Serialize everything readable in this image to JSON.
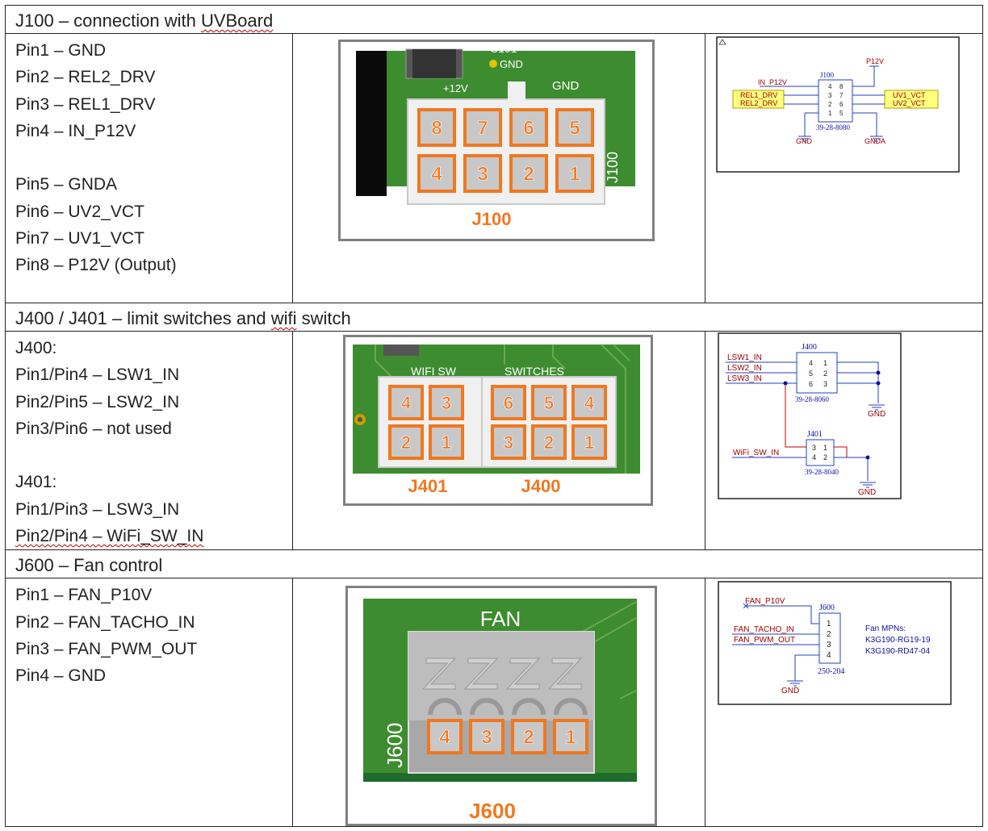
{
  "sections": [
    {
      "title_prefix": "J100 – connection with ",
      "title_term": "UVBoard",
      "pins": [
        "Pin1 – GND",
        "Pin2 – REL2_DRV",
        "Pin3 – REL1_DRV",
        "Pin4 – IN_P12V",
        "",
        "Pin5 – GNDA",
        "Pin6 – UV2_VCT",
        "Pin7 – UV1_VCT",
        "Pin8 – P12V (Output)"
      ],
      "board": {
        "caption": "J100",
        "silk_vertical": "J100",
        "labels": [
          "C101",
          "GND",
          "+12V",
          "GND"
        ],
        "top_row": [
          "8",
          "7",
          "6",
          "5"
        ],
        "bottom_row": [
          "4",
          "3",
          "2",
          "1"
        ]
      },
      "schematic": {
        "ref": "J100",
        "part": "39-28-8080",
        "pins_left": [
          "4",
          "3",
          "2",
          "1"
        ],
        "pins_right": [
          "8",
          "7",
          "6",
          "5"
        ],
        "nets": [
          "IN_P12V",
          "REL1_DRV",
          "REL2_DRV",
          "P12V",
          "UV1_VCT",
          "UV2_VCT",
          "GND",
          "GNDA"
        ]
      }
    },
    {
      "title_prefix": "J400 / J401 – limit switches and ",
      "title_term": "wifi",
      "title_suffix": " switch",
      "pins_a": [
        "J400:",
        "Pin1/Pin4 – LSW1_IN",
        "Pin2/Pin5 – LSW2_IN",
        "Pin3/Pin6 – not used",
        "",
        "J401:",
        "Pin1/Pin3 – LSW3_IN"
      ],
      "pins_last_term": "Pin2/Pin4 – WiFi_SW_IN",
      "board": {
        "caption_left": "J401",
        "caption_right": "J400",
        "silk_left": "WIFI SW",
        "silk_right": "SWITCHES",
        "j401_top": [
          "4",
          "3"
        ],
        "j401_bottom": [
          "2",
          "1"
        ],
        "j400_top": [
          "6",
          "5",
          "4"
        ],
        "j400_bottom": [
          "3",
          "2",
          "1"
        ]
      },
      "schematic": {
        "ref_a": "J400",
        "part_a": "39-28-8060",
        "pins_a_left": [
          "4",
          "5",
          "6"
        ],
        "pins_a_right": [
          "1",
          "2",
          "3"
        ],
        "ref_b": "J401",
        "part_b": "39-28-8040",
        "pins_b_left": [
          "3",
          "4"
        ],
        "pins_b_right": [
          "1",
          "2"
        ],
        "nets": [
          "LSW1_IN",
          "LSW2_IN",
          "LSW3_IN",
          "WiFi_SW_IN",
          "GND",
          "GND"
        ]
      }
    },
    {
      "title": "J600 – Fan control",
      "pins": [
        "Pin1 – FAN_P10V",
        "Pin2 – FAN_TACHO_IN",
        "Pin3 – FAN_PWM_OUT",
        "Pin4 – GND"
      ],
      "board": {
        "caption": "J600",
        "silk_top": "FAN",
        "silk_vertical": "J600",
        "pins": [
          "4",
          "3",
          "2",
          "1"
        ]
      },
      "schematic": {
        "ref": "J600",
        "part": "250-204",
        "pins": [
          "1",
          "2",
          "3",
          "4"
        ],
        "nets": [
          "FAN_P10V",
          "FAN_TACHO_IN",
          "FAN_PWM_OUT",
          "GND"
        ],
        "note_title": "Fan MPNs:",
        "note_lines": [
          "K3G190-RG19-19",
          "K3G190-RD47-04"
        ]
      }
    }
  ]
}
